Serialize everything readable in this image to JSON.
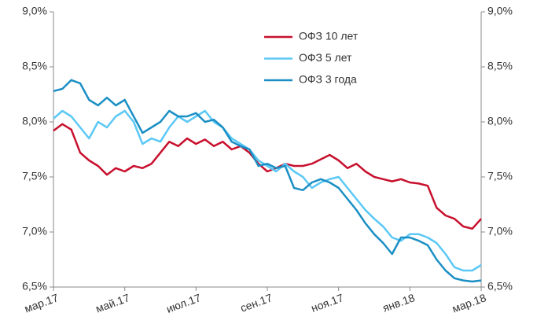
{
  "chart_data": {
    "type": "line",
    "categories": [
      "мар.17",
      null,
      null,
      null,
      null,
      null,
      null,
      null,
      "май.17",
      null,
      null,
      null,
      null,
      null,
      null,
      null,
      "июл.17",
      null,
      null,
      null,
      null,
      null,
      null,
      null,
      "сен.17",
      null,
      null,
      null,
      null,
      null,
      null,
      null,
      "ноя.17",
      null,
      null,
      null,
      null,
      null,
      null,
      null,
      "янв.18",
      null,
      null,
      null,
      null,
      null,
      null,
      null,
      "мар.18"
    ],
    "series": [
      {
        "name": "ОФЗ 10 лет",
        "color": "#c8102e",
        "values": [
          7.92,
          7.98,
          7.93,
          7.72,
          7.65,
          7.6,
          7.52,
          7.58,
          7.55,
          7.6,
          7.58,
          7.62,
          7.72,
          7.82,
          7.78,
          7.85,
          7.8,
          7.84,
          7.78,
          7.82,
          7.75,
          7.78,
          7.72,
          7.62,
          7.55,
          7.58,
          7.62,
          7.6,
          7.6,
          7.62,
          7.66,
          7.7,
          7.65,
          7.58,
          7.62,
          7.55,
          7.5,
          7.48,
          7.46,
          7.48,
          7.45,
          7.44,
          7.42,
          7.22,
          7.15,
          7.12,
          7.05,
          7.03,
          7.12
        ]
      },
      {
        "name": "ОФЗ 5 лет",
        "color": "#5bc8f5",
        "values": [
          8.03,
          8.1,
          8.05,
          7.95,
          7.85,
          8.0,
          7.95,
          8.05,
          8.1,
          8.0,
          7.8,
          7.85,
          7.82,
          7.95,
          8.05,
          8.0,
          8.05,
          8.1,
          8.0,
          7.95,
          7.85,
          7.8,
          7.75,
          7.65,
          7.6,
          7.55,
          7.62,
          7.55,
          7.5,
          7.4,
          7.45,
          7.48,
          7.5,
          7.4,
          7.3,
          7.2,
          7.12,
          7.05,
          6.95,
          6.92,
          6.98,
          6.98,
          6.95,
          6.9,
          6.8,
          6.68,
          6.65,
          6.65,
          6.7
        ]
      },
      {
        "name": "ОФЗ 3 года",
        "color": "#1b8fc4",
        "values": [
          8.28,
          8.3,
          8.38,
          8.35,
          8.2,
          8.15,
          8.22,
          8.15,
          8.2,
          8.05,
          7.9,
          7.95,
          8.0,
          8.1,
          8.05,
          8.05,
          8.08,
          8.0,
          8.02,
          7.95,
          7.82,
          7.78,
          7.75,
          7.6,
          7.62,
          7.58,
          7.6,
          7.4,
          7.38,
          7.45,
          7.48,
          7.45,
          7.4,
          7.3,
          7.2,
          7.08,
          6.98,
          6.9,
          6.8,
          6.95,
          6.95,
          6.92,
          6.88,
          6.75,
          6.65,
          6.58,
          6.56,
          6.55,
          6.56
        ]
      }
    ],
    "ylim": [
      6.5,
      9.0
    ],
    "yticks": [
      {
        "value": 6.5,
        "label": "6,5%"
      },
      {
        "value": 7.0,
        "label": "7,0%"
      },
      {
        "value": 7.5,
        "label": "7,5%"
      },
      {
        "value": 8.0,
        "label": "8,0%"
      },
      {
        "value": 8.5,
        "label": "8,5%"
      },
      {
        "value": 9.0,
        "label": "9,0%"
      }
    ],
    "y2lim": [
      6.5,
      9.0
    ],
    "y2ticks": [
      {
        "value": 6.5,
        "label": "6,5%"
      },
      {
        "value": 7.0,
        "label": "7,0%"
      },
      {
        "value": 7.5,
        "label": "7,5%"
      },
      {
        "value": 8.0,
        "label": "8,0%"
      },
      {
        "value": 8.5,
        "label": "8,5%"
      },
      {
        "value": 9.0,
        "label": "9,0%"
      }
    ],
    "legend": "upper center",
    "grid": false
  }
}
